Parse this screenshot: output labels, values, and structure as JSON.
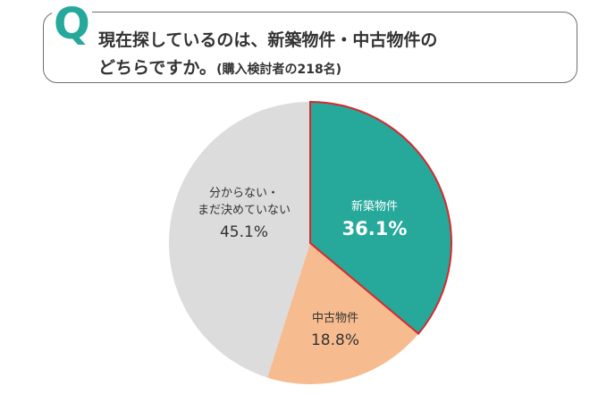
{
  "question": {
    "q_mark": "Q",
    "line1": "現在探しているのは、新築物件・中古物件の",
    "line2_main": "どちらですか。",
    "line2_sub": "(購入検討者の218名)"
  },
  "chart_data": {
    "type": "pie",
    "title": "",
    "slices": [
      {
        "label": "新築物件",
        "value": 36.1,
        "value_text": "36.1%",
        "color": "#26a89a",
        "highlight_border": "#d9272e"
      },
      {
        "label": "中古物件",
        "value": 18.8,
        "value_text": "18.8%",
        "color": "#f6bb8f"
      },
      {
        "label": "分からない・まだ決めていない",
        "label_lines": [
          "分からない・",
          "まだ決めていない"
        ],
        "value": 45.1,
        "value_text": "45.1%",
        "color": "#dcdcdc"
      }
    ],
    "start_angle": "12 o'clock",
    "direction": "clockwise",
    "legend": "none (labels inside slices)"
  }
}
